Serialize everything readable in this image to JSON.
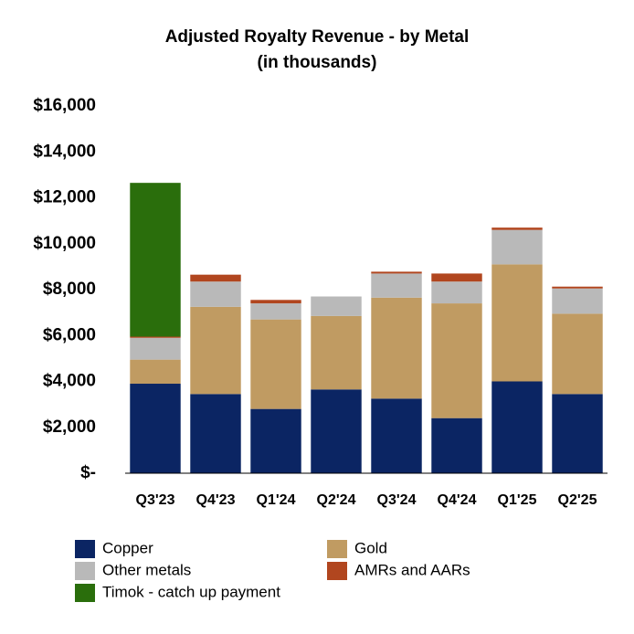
{
  "chart_data": {
    "type": "stacked-bar",
    "title": "Adjusted Royalty Revenue - by Metal",
    "subtitle": "(in thousands)",
    "categories": [
      "Q3'23",
      "Q4'23",
      "Q1'24",
      "Q2'24",
      "Q3'24",
      "Q4'24",
      "Q1'25",
      "Q2'25"
    ],
    "series": [
      {
        "name": "Copper",
        "color": "#0b2563",
        "values": [
          3900,
          3450,
          2800,
          3650,
          3250,
          2400,
          4000,
          3450
        ]
      },
      {
        "name": "Gold",
        "color": "#c09b62",
        "values": [
          1050,
          3800,
          3900,
          3200,
          4400,
          5000,
          5100,
          3500
        ]
      },
      {
        "name": "Other metals",
        "color": "#b9b9b9",
        "values": [
          950,
          1100,
          700,
          850,
          1050,
          950,
          1500,
          1100
        ]
      },
      {
        "name": "AMRs and AARs",
        "color": "#b1461f",
        "values": [
          50,
          300,
          150,
          0,
          80,
          350,
          100,
          80
        ]
      },
      {
        "name": "Timok - catch up payment",
        "color": "#2a6e0c",
        "values": [
          6700,
          0,
          0,
          0,
          0,
          0,
          0,
          0
        ]
      }
    ],
    "ylim": [
      0,
      16000
    ],
    "yticks": [
      {
        "value": 0,
        "label": "$-"
      },
      {
        "value": 2000,
        "label": "$2,000"
      },
      {
        "value": 4000,
        "label": "$4,000"
      },
      {
        "value": 6000,
        "label": "$6,000"
      },
      {
        "value": 8000,
        "label": "$8,000"
      },
      {
        "value": 10000,
        "label": "$10,000"
      },
      {
        "value": 12000,
        "label": "$12,000"
      },
      {
        "value": 14000,
        "label": "$14,000"
      },
      {
        "value": 16000,
        "label": "$16,000"
      }
    ],
    "grid": false
  }
}
